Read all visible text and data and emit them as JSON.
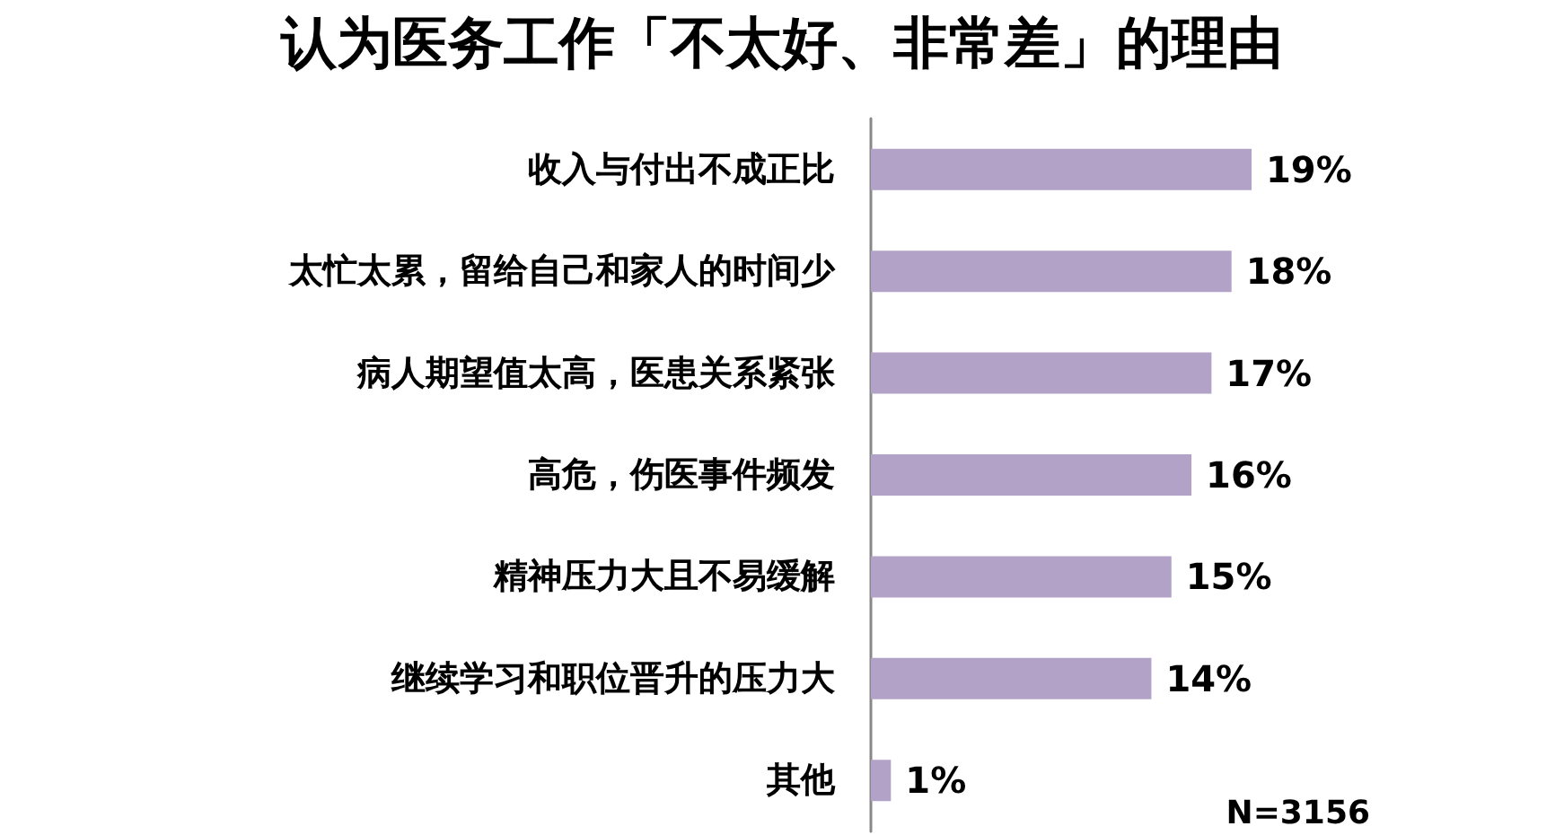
{
  "chart_data": {
    "type": "bar",
    "orientation": "horizontal",
    "title": "认为医务工作「不太好、非常差」的理由",
    "categories": [
      "收入与付出不成正比",
      "太忙太累，留给自己和家人的时间少",
      "病人期望值太高，医患关系紧张",
      "高危，伤医事件频发",
      "精神压力大且不易缓解",
      "继续学习和职位晋升的压力大",
      "其他"
    ],
    "values": [
      19,
      18,
      17,
      16,
      15,
      14,
      1
    ],
    "value_labels": [
      "19%",
      "18%",
      "17%",
      "16%",
      "15%",
      "14%",
      "1%"
    ],
    "color": "#b3a2c7",
    "annotations": [
      "N=3156"
    ],
    "grid": false
  }
}
